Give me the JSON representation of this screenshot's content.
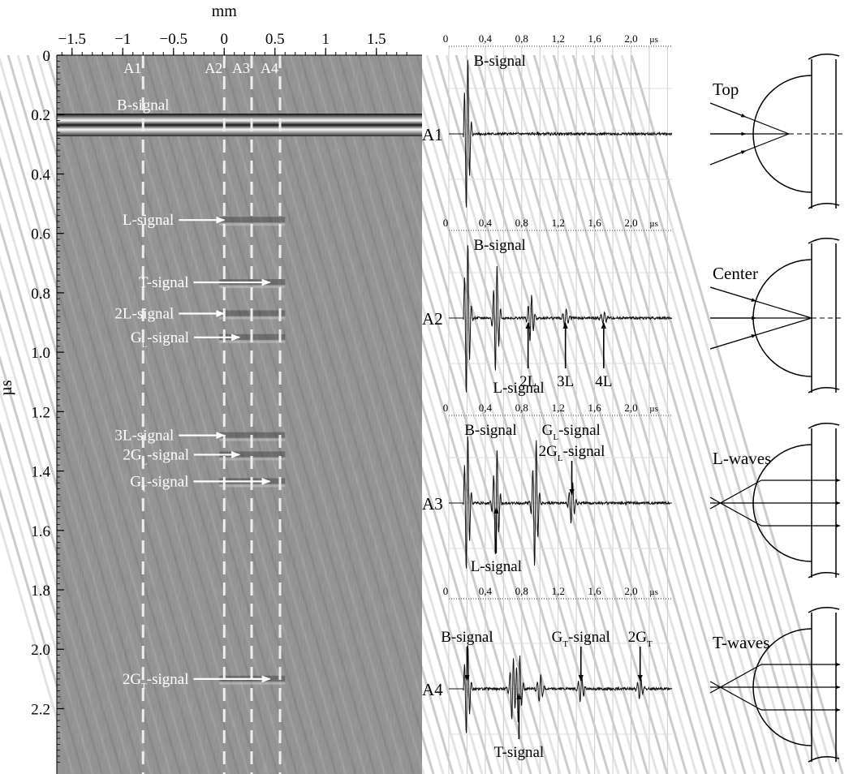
{
  "bscan": {
    "x_unit": "mm",
    "y_unit": "µs",
    "x_ticks": [
      {
        "v": -1.5,
        "label": "−1.5"
      },
      {
        "v": -1.0,
        "label": "−1"
      },
      {
        "v": -0.5,
        "label": "−0.5"
      },
      {
        "v": 0.0,
        "label": "0"
      },
      {
        "v": 0.5,
        "label": "0.5"
      },
      {
        "v": 1.0,
        "label": "1"
      },
      {
        "v": 1.5,
        "label": "1.5"
      }
    ],
    "y_ticks": [
      {
        "v": 0.0,
        "label": "0"
      },
      {
        "v": 0.2,
        "label": "0.2"
      },
      {
        "v": 0.4,
        "label": "0.4"
      },
      {
        "v": 0.6,
        "label": "0.6"
      },
      {
        "v": 0.8,
        "label": "0.8"
      },
      {
        "v": 1.0,
        "label": "1.0"
      },
      {
        "v": 1.2,
        "label": "1.2"
      },
      {
        "v": 1.4,
        "label": "1.4"
      },
      {
        "v": 1.6,
        "label": "1.6"
      },
      {
        "v": 1.8,
        "label": "1.8"
      },
      {
        "v": 2.0,
        "label": "2.0"
      },
      {
        "v": 2.2,
        "label": "2.2"
      }
    ],
    "x_range": [
      -1.65,
      1.95
    ],
    "y_range": [
      0,
      2.42
    ],
    "scan_lines": [
      {
        "label": "A1",
        "x": -0.8
      },
      {
        "label": "A2",
        "x": 0.0
      },
      {
        "label": "A3",
        "x": 0.27
      },
      {
        "label": "A4",
        "x": 0.55
      }
    ],
    "b_signal_label": "B-signal",
    "annotations": [
      {
        "text": "L-signal",
        "sub": "",
        "suffix": "",
        "y": 0.555,
        "tip_x": 0.0
      },
      {
        "text": "T-signal",
        "sub": "",
        "suffix": "",
        "y": 0.765,
        "tip_x": 0.45
      },
      {
        "text": "2L-signal",
        "sub": "",
        "suffix": "",
        "y": 0.87,
        "tip_x": 0.0
      },
      {
        "text": "G",
        "sub": "L",
        "suffix": "-signal",
        "y": 0.95,
        "tip_x": 0.15
      },
      {
        "text": "3L-signal",
        "sub": "",
        "suffix": "",
        "y": 1.28,
        "tip_x": 0.0
      },
      {
        "text": "2G",
        "sub": "L",
        "suffix": "-signal",
        "y": 1.345,
        "tip_x": 0.15
      },
      {
        "text": "G",
        "sub": "T",
        "suffix": "-signal",
        "y": 1.435,
        "tip_x": 0.45
      },
      {
        "text": "2G",
        "sub": "T",
        "suffix": "-signal",
        "y": 2.1,
        "tip_x": 0.45
      }
    ]
  },
  "ascans": {
    "time_unit": "µs",
    "tick_labels": [
      "0",
      "0,4",
      "0,8",
      "1,2",
      "1,6",
      "2,0"
    ],
    "panels": [
      {
        "label": "A1",
        "labels": [
          {
            "text": "B-signal",
            "sub": "",
            "suffix": "",
            "t": 0.2,
            "pos": "above"
          }
        ],
        "arrows": []
      },
      {
        "label": "A2",
        "labels": [
          {
            "text": "B-signal",
            "sub": "",
            "suffix": "",
            "t": 0.2,
            "pos": "above"
          },
          {
            "text": "L-signal",
            "sub": "",
            "suffix": "",
            "t": 0.52,
            "pos": "below"
          }
        ],
        "arrows": [
          {
            "text": "2L",
            "sub": "",
            "suffix": "",
            "t": 0.87,
            "dir": "up"
          },
          {
            "text": "3L",
            "sub": "",
            "suffix": "",
            "t": 1.28,
            "dir": "up"
          },
          {
            "text": "4L",
            "sub": "",
            "suffix": "",
            "t": 1.7,
            "dir": "up"
          }
        ]
      },
      {
        "label": "A3",
        "labels": [
          {
            "text": "B-signal",
            "sub": "",
            "suffix": "",
            "t": 0.1,
            "pos": "above"
          },
          {
            "text": "G",
            "sub": "L",
            "suffix": "-signal",
            "t": 0.95,
            "pos": "above"
          }
        ],
        "arrows": [
          {
            "text": "2G",
            "sub": "L",
            "suffix": "-signal",
            "t": 1.35,
            "dir": "down"
          },
          {
            "text": "L-signal",
            "sub": "",
            "suffix": "",
            "t": 0.52,
            "dir": "up"
          }
        ]
      },
      {
        "label": "A4",
        "labels": [],
        "arrows": [
          {
            "text": "B-signal",
            "sub": "",
            "suffix": "",
            "t": 0.2,
            "dir": "down"
          },
          {
            "text": "T-signal",
            "sub": "",
            "suffix": "",
            "t": 0.77,
            "dir": "up"
          },
          {
            "text": "G",
            "sub": "T",
            "suffix": "-signal",
            "t": 1.45,
            "dir": "down"
          },
          {
            "text": "2G",
            "sub": "T",
            "suffix": "",
            "t": 2.1,
            "dir": "down"
          }
        ]
      }
    ]
  },
  "wave_diagrams": [
    {
      "label": "Top",
      "kind": "top"
    },
    {
      "label": "Center",
      "kind": "center"
    },
    {
      "label": "L-waves",
      "kind": "parallel"
    },
    {
      "label": "T-waves",
      "kind": "parallel"
    }
  ]
}
